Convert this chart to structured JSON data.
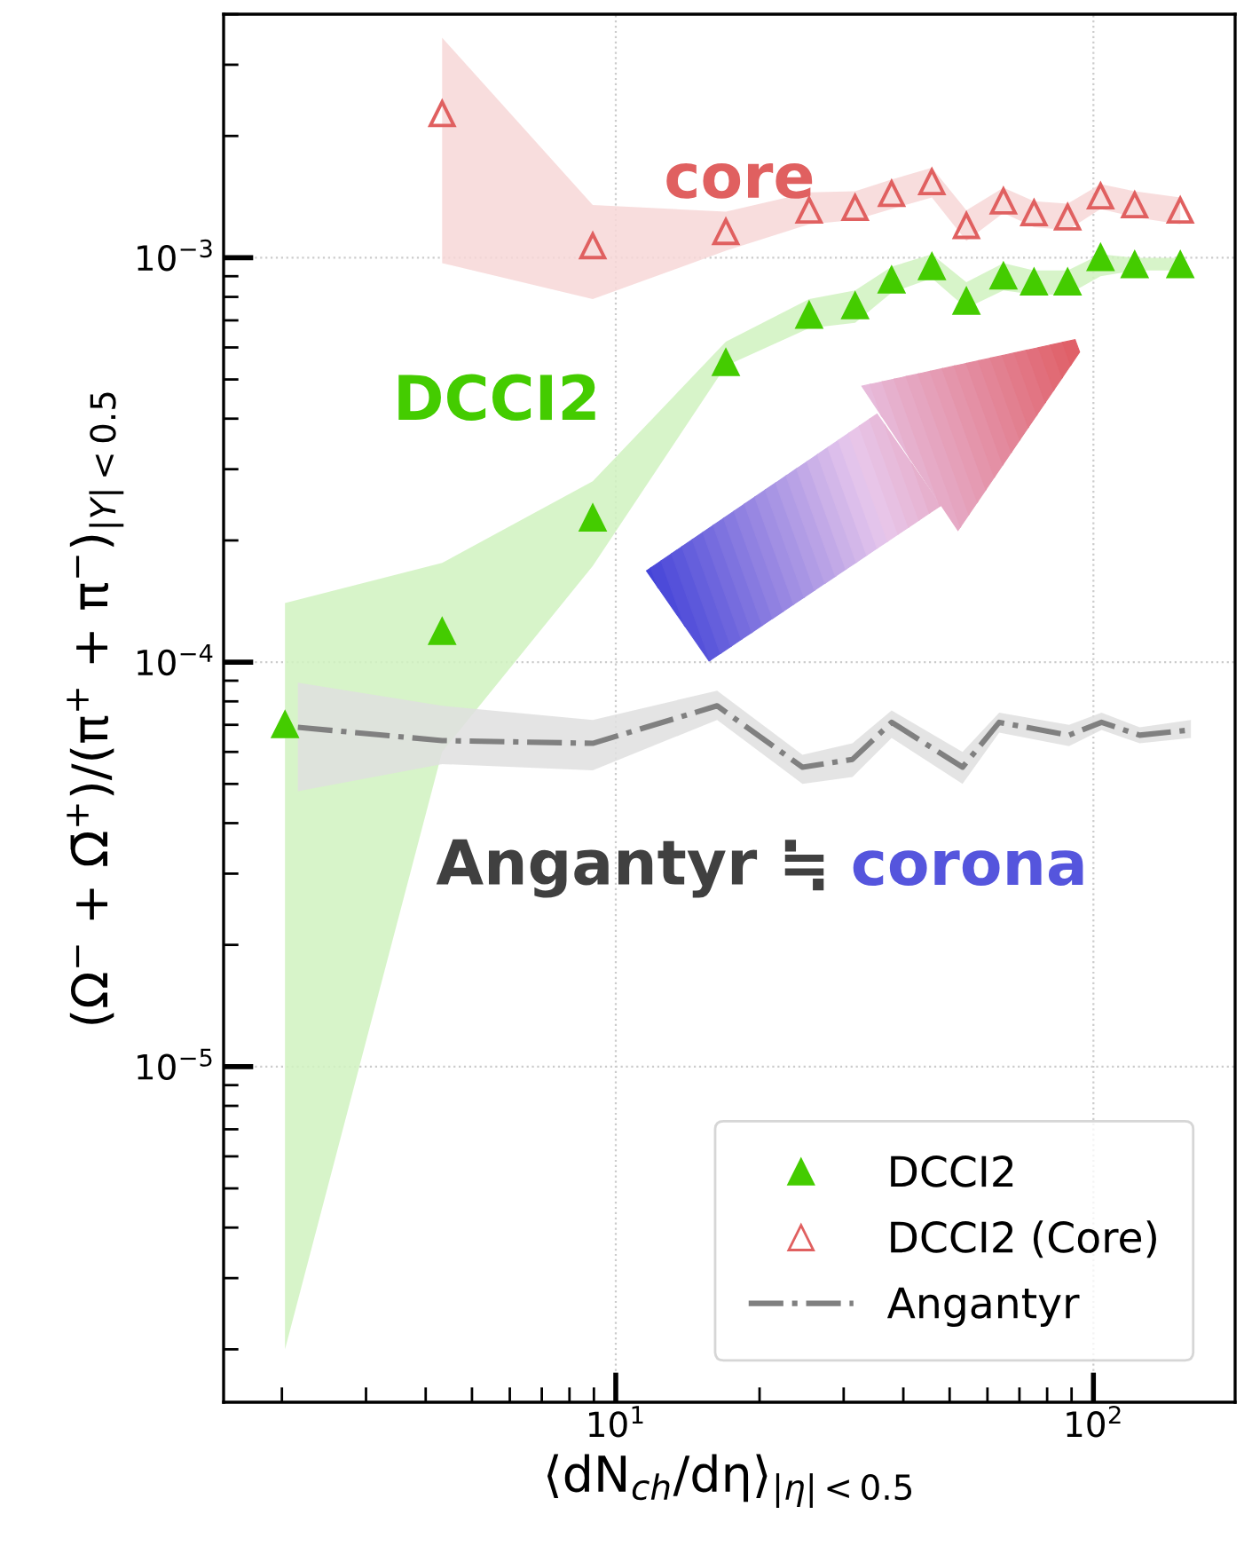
{
  "chart_data": {
    "type": "scatter",
    "xlabel": "⟨dN$_{ch}$/dη⟩$_{|η|<0.5}$",
    "ylabel": "(Ω$^{−}$ + Ω̄$^{+}$)/(π$^{+}$ + π$^{−}$)$_{|Y|<0.5}$",
    "log": "xy",
    "grid": true,
    "legend": "bottom right",
    "xlim": [
      1.51,
      198
    ],
    "ylim": [
      1.48e-06,
      0.004
    ],
    "xticks": [
      {
        "value": 10,
        "label": "10$^{1}$"
      },
      {
        "value": 100,
        "label": "10$^{2}$"
      }
    ],
    "yticks": [
      {
        "value": 1e-05,
        "label": "10$^{−5}$"
      },
      {
        "value": 0.0001,
        "label": "10$^{−4}$"
      },
      {
        "value": 0.001,
        "label": "10$^{−3}$"
      }
    ],
    "annotations": [
      "core",
      "DCCI2",
      "Angantyr ≒",
      "corona"
    ],
    "series": [
      {
        "name": "DCCI2",
        "marker": "triangle",
        "color": "#44cc00",
        "x": [
          2.03,
          4.33,
          8.95,
          17.0,
          25.4,
          31.7,
          37.8,
          45.9,
          54.2,
          64.8,
          75.1,
          88.3,
          103.5,
          122,
          152
        ],
        "values": [
          7e-05,
          0.000119,
          0.000227,
          0.00055,
          0.00072,
          0.00076,
          0.00088,
          0.00095,
          0.00078,
          0.0009,
          0.00087,
          0.00087,
          0.001,
          0.00096,
          0.00096
        ],
        "upper": [
          0.00014,
          0.000176,
          0.00028,
          0.00062,
          0.00079,
          0.00083,
          0.00095,
          0.00102,
          0.00087,
          0.00097,
          0.00093,
          0.00093,
          0.00102,
          0.001,
          0.001
        ],
        "lower": [
          2e-06,
          6e-05,
          0.000173,
          0.00054,
          0.00067,
          0.00069,
          0.00082,
          0.00089,
          0.00075,
          0.00083,
          0.00081,
          0.00081,
          0.0009,
          0.00093,
          0.00093
        ]
      },
      {
        "name": "DCCI2 (Core)",
        "marker": "triangle",
        "color": "#e06060",
        "x": [
          4.33,
          8.95,
          17.0,
          25.4,
          31.7,
          37.8,
          45.9,
          54.2,
          64.8,
          75.1,
          88.3,
          103.5,
          122,
          152
        ],
        "values": [
          0.00227,
          0.00107,
          0.00116,
          0.00131,
          0.00133,
          0.00144,
          0.00154,
          0.0012,
          0.00138,
          0.00129,
          0.00126,
          0.00142,
          0.00135,
          0.00131
        ],
        "upper": [
          0.0035,
          0.00135,
          0.0013,
          0.00145,
          0.00146,
          0.00156,
          0.00167,
          0.00131,
          0.00149,
          0.00138,
          0.00136,
          0.00152,
          0.00146,
          0.00141
        ],
        "lower": [
          0.00097,
          0.00079,
          0.00104,
          0.00121,
          0.00124,
          0.00132,
          0.00141,
          0.0011,
          0.00129,
          0.00119,
          0.00117,
          0.00132,
          0.00126,
          0.00121
        ]
      },
      {
        "name": "Angantyr",
        "type": "line",
        "marker": "none",
        "line_style": "dashdot",
        "color": "#808080",
        "x": [
          2.16,
          4.33,
          8.95,
          16.3,
          24.6,
          31.3,
          37.8,
          53.2,
          63.5,
          88.9,
          104,
          125,
          160
        ],
        "values": [
          6.9e-05,
          6.4e-05,
          6.3e-05,
          7.8e-05,
          5.5e-05,
          5.75e-05,
          7.1e-05,
          5.5e-05,
          7.1e-05,
          6.6e-05,
          7.1e-05,
          6.6e-05,
          6.8e-05
        ],
        "upper": [
          8.9e-05,
          7.8e-05,
          7.2e-05,
          8.5e-05,
          5.9e-05,
          6.3e-05,
          7.6e-05,
          6e-05,
          7.5e-05,
          7e-05,
          7.5e-05,
          6.9e-05,
          7.2e-05
        ],
        "lower": [
          4.8e-05,
          5.6e-05,
          5.4e-05,
          7.2e-05,
          5e-05,
          5.2e-05,
          6.5e-05,
          5e-05,
          6.7e-05,
          6.2e-05,
          6.8e-05,
          6.3e-05,
          6.5e-05
        ]
      }
    ]
  }
}
